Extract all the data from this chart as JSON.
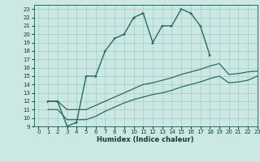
{
  "xlabel": "Humidex (Indice chaleur)",
  "background_color": "#cce8e4",
  "grid_color": "#aacfcc",
  "line_color": "#2a6b60",
  "xlim": [
    -0.5,
    23
  ],
  "ylim": [
    9,
    23.5
  ],
  "xticks": [
    0,
    1,
    2,
    3,
    4,
    5,
    6,
    7,
    8,
    9,
    10,
    11,
    12,
    13,
    14,
    15,
    16,
    17,
    18,
    19,
    20,
    21,
    22,
    23
  ],
  "yticks": [
    9,
    10,
    11,
    12,
    13,
    14,
    15,
    16,
    17,
    18,
    19,
    20,
    21,
    22,
    23
  ],
  "line1_x": [
    1,
    2,
    3,
    4,
    5,
    6,
    7,
    8,
    9,
    10,
    11,
    12,
    13,
    14,
    15,
    16,
    17,
    18
  ],
  "line1_y": [
    12,
    12,
    9,
    9.5,
    15,
    15,
    18,
    19.5,
    20,
    22,
    22.5,
    19,
    21,
    21,
    23,
    22.5,
    21,
    17.5
  ],
  "line2_x": [
    1,
    2,
    3,
    4,
    5,
    6,
    7,
    8,
    9,
    10,
    11,
    12,
    13,
    14,
    15,
    16,
    17,
    18,
    19,
    20,
    21,
    22,
    23
  ],
  "line2_y": [
    12,
    12,
    11,
    11,
    11,
    11.5,
    12,
    12.5,
    13,
    13.5,
    14,
    14.2,
    14.5,
    14.8,
    15.2,
    15.5,
    15.8,
    16.2,
    16.5,
    15.2,
    15.3,
    15.5,
    15.6
  ],
  "line3_x": [
    1,
    2,
    3,
    4,
    5,
    6,
    7,
    8,
    9,
    10,
    11,
    12,
    13,
    14,
    15,
    16,
    17,
    18,
    19,
    20,
    21,
    22,
    23
  ],
  "line3_y": [
    11,
    11,
    9.8,
    9.8,
    9.8,
    10.2,
    10.8,
    11.3,
    11.8,
    12.2,
    12.5,
    12.8,
    13.0,
    13.3,
    13.7,
    14.0,
    14.3,
    14.7,
    15.0,
    14.2,
    14.3,
    14.5,
    15.0
  ]
}
